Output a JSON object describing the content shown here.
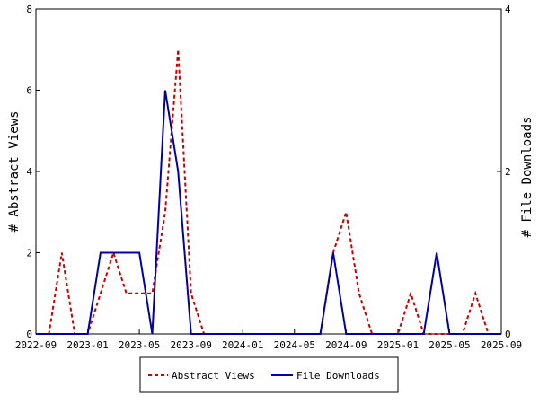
{
  "chart_data": {
    "type": "line",
    "x": [
      "2022-09",
      "2022-10",
      "2022-11",
      "2022-12",
      "2023-01",
      "2023-02",
      "2023-03",
      "2023-04",
      "2023-05",
      "2023-06",
      "2023-07",
      "2023-08",
      "2023-09",
      "2023-10",
      "2023-11",
      "2023-12",
      "2024-01",
      "2024-02",
      "2024-03",
      "2024-04",
      "2024-05",
      "2024-06",
      "2024-07",
      "2024-08",
      "2024-09",
      "2024-10",
      "2024-11",
      "2024-12",
      "2025-01",
      "2025-02",
      "2025-03",
      "2025-04",
      "2025-05",
      "2025-06",
      "2025-07",
      "2025-08",
      "2025-09"
    ],
    "x_ticks": [
      "2022-09",
      "2023-01",
      "2023-05",
      "2023-09",
      "2024-01",
      "2024-05",
      "2024-09",
      "2025-01",
      "2025-05",
      "2025-09"
    ],
    "series": [
      {
        "name": "Abstract Views",
        "axis": "left",
        "color": "#cc0000",
        "style": "dashed",
        "values": [
          0,
          0,
          2,
          0,
          0,
          1,
          2,
          1,
          1,
          1,
          3,
          7,
          1,
          0,
          0,
          0,
          0,
          0,
          0,
          0,
          0,
          0,
          0,
          2,
          3,
          1,
          0,
          0,
          0,
          1,
          0,
          0,
          0,
          0,
          1,
          0,
          0
        ]
      },
      {
        "name": "File Downloads",
        "axis": "right",
        "color": "#0000aa",
        "style": "solid",
        "values": [
          0,
          0,
          0,
          0,
          0,
          1,
          1,
          1,
          1,
          0,
          3,
          2,
          0,
          0,
          0,
          0,
          0,
          0,
          0,
          0,
          0,
          0,
          0,
          1,
          0,
          0,
          0,
          0,
          0,
          0,
          0,
          1,
          0,
          0,
          0,
          0,
          0
        ]
      }
    ],
    "ylabel": "# Abstract Views",
    "ylim": [
      0,
      8
    ],
    "y_ticks": [
      0,
      2,
      4,
      6,
      8
    ],
    "y2label": "# File Downloads",
    "y2lim": [
      0,
      4
    ],
    "y2_ticks": [
      0,
      2,
      4
    ],
    "grid": false,
    "legend": "bottom"
  }
}
